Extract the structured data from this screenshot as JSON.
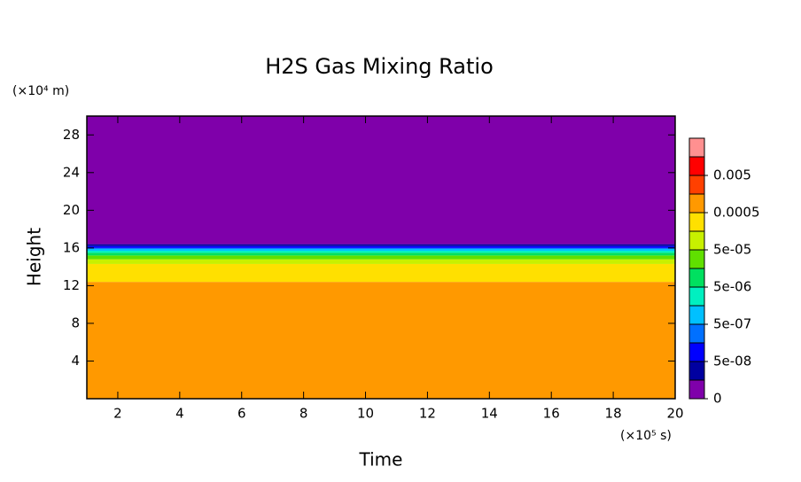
{
  "chart_data": {
    "type": "contour",
    "title": "H2S Gas Mixing Ratio",
    "x_label": "Time",
    "y_label": "Height",
    "x_unit": "(×10⁵ s)",
    "y_unit": "(×10⁴ m)",
    "xlim": [
      1,
      20
    ],
    "ylim": [
      0,
      30
    ],
    "xticks": [
      2,
      4,
      6,
      8,
      10,
      12,
      14,
      16,
      18,
      20
    ],
    "yticks": [
      4,
      8,
      12,
      16,
      20,
      24,
      28
    ],
    "bands": [
      {
        "from": 0,
        "to": 12.4,
        "color": "#ff9900"
      },
      {
        "from": 12.4,
        "to": 14.3,
        "color": "#ffe000"
      },
      {
        "from": 14.3,
        "to": 14.8,
        "color": "#c8f000"
      },
      {
        "from": 14.8,
        "to": 15.2,
        "color": "#60e000"
      },
      {
        "from": 15.2,
        "to": 15.5,
        "color": "#00e060"
      },
      {
        "from": 15.5,
        "to": 15.7,
        "color": "#00f0c0"
      },
      {
        "from": 15.7,
        "to": 15.9,
        "color": "#00c0ff"
      },
      {
        "from": 15.9,
        "to": 16.0,
        "color": "#0070ff"
      },
      {
        "from": 16.0,
        "to": 16.2,
        "color": "#0000ff"
      },
      {
        "from": 16.2,
        "to": 16.4,
        "color": "#0000a0"
      },
      {
        "from": 16.4,
        "to": 30,
        "color": "#7f00aa"
      }
    ],
    "levels": [
      0,
      1e-08,
      5e-08,
      1e-07,
      5e-07,
      1e-06,
      5e-06,
      1e-05,
      5e-05,
      0.0001,
      0.0005,
      0.001,
      0.005,
      0.01
    ],
    "level_colors": [
      "#7f00aa",
      "#0000a0",
      "#0000ff",
      "#0070ff",
      "#00c0ff",
      "#00f0c0",
      "#00e060",
      "#60e000",
      "#c8f000",
      "#ffe000",
      "#ff9900",
      "#ff4000",
      "#ff0000",
      "#ff9090"
    ],
    "colorbar_ticks": [
      0,
      {
        "value": 5e-08,
        "label": "5e-08"
      },
      {
        "value": 5e-07,
        "label": "5e-07"
      },
      {
        "value": 5e-06,
        "label": "5e-06"
      },
      {
        "value": 5e-05,
        "label": "5e-05"
      },
      0.0005,
      0.005
    ]
  }
}
